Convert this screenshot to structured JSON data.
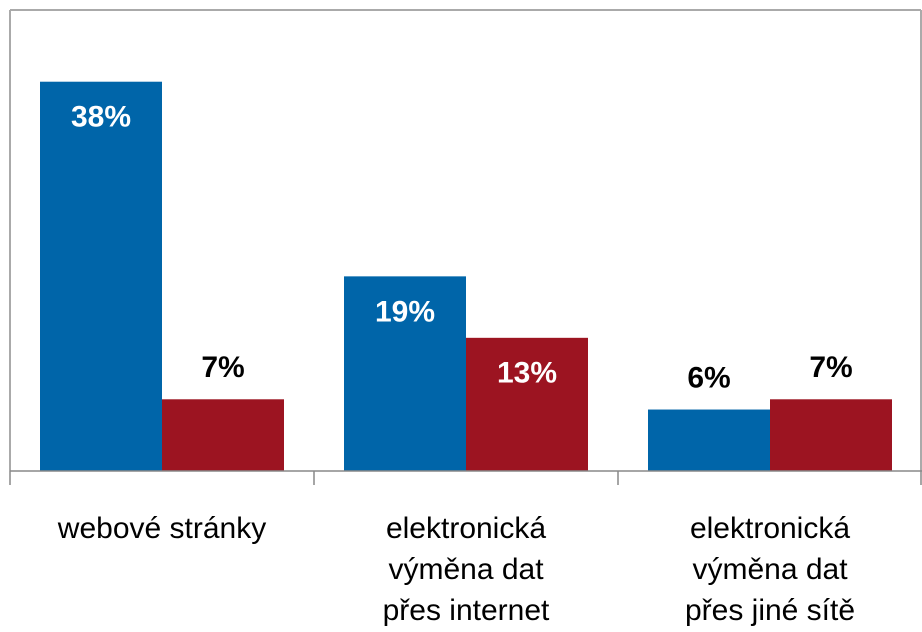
{
  "chart_data": {
    "type": "bar",
    "categories": [
      "webové stránky",
      "elektronická\nvýměna dat\npřes internet",
      "elektronická\nvýměna dat\npřes jiné sítě"
    ],
    "series": [
      {
        "color": "#0065a9",
        "values": [
          38,
          19,
          6
        ],
        "value_labels": [
          "38%",
          "19%",
          "6%"
        ]
      },
      {
        "color": "#9c1421",
        "values": [
          7,
          13,
          7
        ],
        "value_labels": [
          "7%",
          "13%",
          "7%"
        ]
      }
    ],
    "ylim": [
      0,
      45
    ]
  }
}
